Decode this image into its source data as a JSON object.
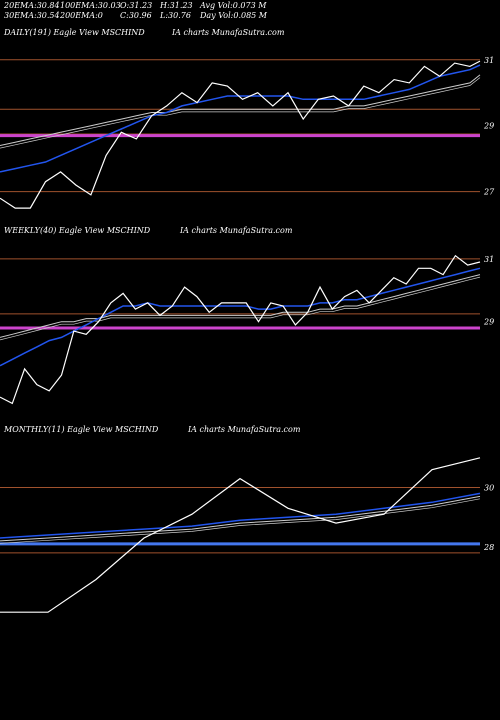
{
  "header": {
    "row1": [
      {
        "label": "20EMA:",
        "value": "30.84"
      },
      {
        "label": "100EMA:",
        "value": "30.03"
      },
      {
        "label": "O:",
        "value": "31.23"
      },
      {
        "label": "H:",
        "value": "31.23"
      },
      {
        "label": "Avg Vol:",
        "value": "0.073 M"
      }
    ],
    "row2": [
      {
        "label": "30EMA:",
        "value": "30.54"
      },
      {
        "label": "200EMA:",
        "value": "0"
      },
      {
        "label": "C:",
        "value": "30.96"
      },
      {
        "label": "L:",
        "value": "30.76"
      },
      {
        "label": "Day Vol:",
        "value": "0.085 M"
      }
    ]
  },
  "panels": {
    "daily": {
      "title": "DAILY(191) Eagle   View   MSCHIND",
      "source": "IA charts MunafaSutra.com"
    },
    "weekly": {
      "title": "WEEKLY(40) Eagle   View   MSCHIND",
      "source": "IA charts MunafaSutra.com"
    },
    "monthly": {
      "title": "MONTHLY(11) Eagle   View   MSCHIND",
      "source": "IA charts MunafaSutra.com"
    }
  },
  "colors": {
    "background": "#000000",
    "price": "#ffffff",
    "ema_fast": "#2255ee",
    "ema_slow": "#cccccc",
    "hline": "#a0522d",
    "support": "#cc44cc",
    "support_monthly": "#4477ee"
  },
  "chart_data": [
    {
      "type": "line",
      "panel": "daily",
      "ylim": [
        26.2,
        31.6
      ],
      "yticks": [
        "31",
        "29",
        "27"
      ],
      "hlines": [
        31.0,
        29.5,
        28.75,
        27.0
      ],
      "support": 28.7,
      "x": [
        0,
        6,
        12,
        18,
        24,
        30,
        36,
        42,
        48,
        54,
        60,
        66,
        72,
        78,
        84,
        90,
        96,
        102,
        108,
        114,
        120,
        126,
        132,
        138,
        144,
        150,
        156,
        162,
        168,
        174,
        180,
        186,
        190
      ],
      "price": [
        26.8,
        26.5,
        26.5,
        27.3,
        27.6,
        27.2,
        26.9,
        28.1,
        28.8,
        28.6,
        29.3,
        29.6,
        30.0,
        29.7,
        30.3,
        30.2,
        29.8,
        30.0,
        29.6,
        30.0,
        29.2,
        29.8,
        29.9,
        29.6,
        30.2,
        30.0,
        30.4,
        30.3,
        30.8,
        30.5,
        30.9,
        30.8,
        30.96
      ],
      "ema_fast": [
        27.6,
        27.7,
        27.8,
        27.9,
        28.1,
        28.3,
        28.5,
        28.7,
        28.9,
        29.1,
        29.3,
        29.4,
        29.6,
        29.7,
        29.8,
        29.9,
        29.9,
        29.9,
        29.9,
        29.9,
        29.8,
        29.8,
        29.8,
        29.8,
        29.8,
        29.9,
        30.0,
        30.1,
        30.3,
        30.5,
        30.6,
        30.7,
        30.84
      ],
      "ema_slow": [
        28.4,
        28.5,
        28.6,
        28.7,
        28.8,
        28.9,
        29.0,
        29.1,
        29.2,
        29.3,
        29.4,
        29.4,
        29.5,
        29.5,
        29.5,
        29.5,
        29.5,
        29.5,
        29.5,
        29.5,
        29.5,
        29.5,
        29.5,
        29.6,
        29.6,
        29.7,
        29.8,
        29.9,
        30.0,
        30.1,
        30.2,
        30.3,
        30.54
      ]
    },
    {
      "type": "line",
      "panel": "weekly",
      "ylim": [
        26.0,
        31.6
      ],
      "yticks": [
        "31",
        "29"
      ],
      "hlines": [
        31.0,
        29.25
      ],
      "support": 28.8,
      "x": [
        0,
        1,
        2,
        3,
        4,
        5,
        6,
        7,
        8,
        9,
        10,
        11,
        12,
        13,
        14,
        15,
        16,
        17,
        18,
        19,
        20,
        21,
        22,
        23,
        24,
        25,
        26,
        27,
        28,
        29,
        30,
        31,
        32,
        33,
        34,
        35,
        36,
        37,
        38,
        39
      ],
      "price": [
        26.6,
        26.4,
        27.5,
        27.0,
        26.8,
        27.3,
        28.7,
        28.6,
        29.0,
        29.6,
        29.9,
        29.4,
        29.6,
        29.2,
        29.5,
        30.1,
        29.8,
        29.3,
        29.6,
        29.6,
        29.6,
        29.0,
        29.6,
        29.5,
        28.9,
        29.3,
        30.1,
        29.4,
        29.8,
        30.0,
        29.6,
        30.0,
        30.4,
        30.2,
        30.7,
        30.7,
        30.5,
        31.1,
        30.8,
        30.9
      ],
      "ema_fast": [
        27.6,
        27.8,
        28.0,
        28.2,
        28.4,
        28.5,
        28.7,
        28.9,
        29.1,
        29.3,
        29.5,
        29.5,
        29.6,
        29.5,
        29.5,
        29.5,
        29.5,
        29.5,
        29.5,
        29.5,
        29.5,
        29.4,
        29.4,
        29.5,
        29.5,
        29.5,
        29.6,
        29.6,
        29.7,
        29.7,
        29.8,
        29.9,
        30.0,
        30.1,
        30.2,
        30.3,
        30.4,
        30.5,
        30.6,
        30.7
      ],
      "ema_slow": [
        28.5,
        28.6,
        28.7,
        28.8,
        28.9,
        29.0,
        29.0,
        29.1,
        29.1,
        29.2,
        29.2,
        29.2,
        29.2,
        29.2,
        29.2,
        29.2,
        29.2,
        29.2,
        29.2,
        29.2,
        29.2,
        29.2,
        29.2,
        29.3,
        29.3,
        29.3,
        29.4,
        29.4,
        29.5,
        29.5,
        29.6,
        29.7,
        29.8,
        29.9,
        30.0,
        30.1,
        30.2,
        30.3,
        30.4,
        30.5
      ]
    },
    {
      "type": "line",
      "panel": "monthly",
      "ylim": [
        25.2,
        31.6
      ],
      "yticks": [
        "30",
        "28"
      ],
      "hlines": [
        30.0,
        27.8
      ],
      "support": 28.1,
      "x": [
        0,
        1,
        2,
        3,
        4,
        5,
        6,
        7,
        8,
        9,
        10
      ],
      "price": [
        25.8,
        25.8,
        26.9,
        28.3,
        29.1,
        30.3,
        29.3,
        28.8,
        29.1,
        30.6,
        31.0
      ],
      "ema_fast": [
        28.3,
        28.4,
        28.5,
        28.6,
        28.7,
        28.9,
        29.0,
        29.1,
        29.3,
        29.5,
        29.8
      ],
      "ema_slow": [
        28.2,
        28.3,
        28.4,
        28.5,
        28.6,
        28.8,
        28.9,
        29.0,
        29.2,
        29.4,
        29.7
      ]
    }
  ]
}
